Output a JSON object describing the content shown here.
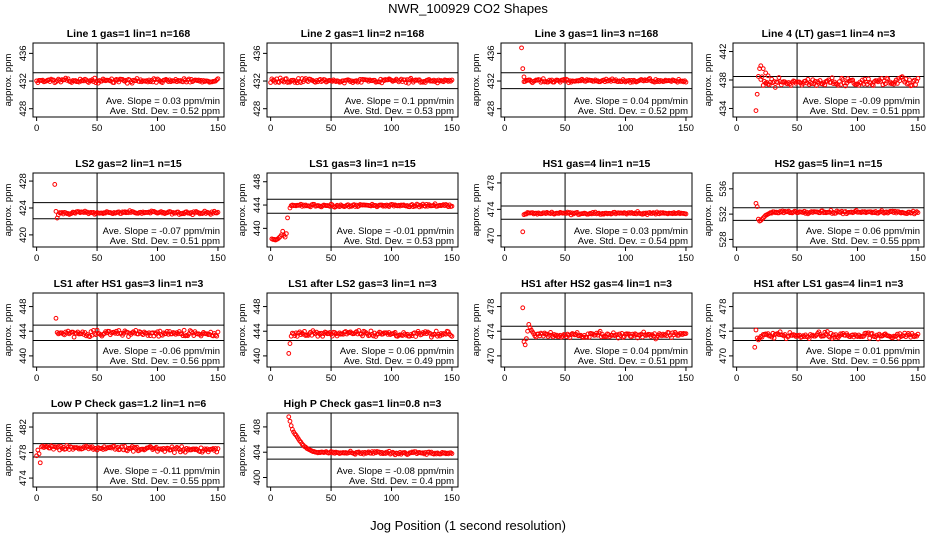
{
  "page": {
    "title": "NWR_100929  CO2 Shapes",
    "xlabel": "Jog Position (1 second resolution)"
  },
  "chart_data": [
    {
      "type": "scatter",
      "title": "Line 1 gas=1 lin=1 n=168",
      "ylabel": "approx. ppm",
      "xlim": [
        -3,
        155
      ],
      "ylim": [
        426.8,
        437.5
      ],
      "yticks": [
        428,
        432,
        436
      ],
      "xticks": [
        0,
        50,
        100,
        150
      ],
      "hlines": [
        433.2,
        430.9
      ],
      "vline": 50,
      "slope_text": "Ave. Slope =  0.03  ppm/min",
      "std_text": "Ave. Std. Dev. =  0.52  ppm",
      "base": 432.05,
      "noise": 0.18,
      "x_start": 0,
      "trend": 0,
      "early": []
    },
    {
      "type": "scatter",
      "title": "Line 2 gas=1 lin=2 n=168",
      "ylabel": "approx. ppm",
      "xlim": [
        -3,
        155
      ],
      "ylim": [
        426.8,
        437.5
      ],
      "yticks": [
        428,
        432,
        436
      ],
      "xticks": [
        0,
        50,
        100,
        150
      ],
      "hlines": [
        433.2,
        430.9
      ],
      "vline": 50,
      "slope_text": "Ave. Slope =  0.1  ppm/min",
      "std_text": "Ave. Std. Dev. =  0.53  ppm",
      "base": 432.05,
      "noise": 0.2,
      "x_start": 0,
      "trend": 0,
      "early": []
    },
    {
      "type": "scatter",
      "title": "Line 3 gas=1 lin=3 n=168",
      "ylabel": "approx. ppm",
      "xlim": [
        -3,
        155
      ],
      "ylim": [
        426.8,
        437.5
      ],
      "yticks": [
        428,
        432,
        436
      ],
      "xticks": [
        0,
        50,
        100,
        150
      ],
      "hlines": [
        433.2,
        430.9
      ],
      "vline": 50,
      "slope_text": "Ave. Slope =  0.04  ppm/min",
      "std_text": "Ave. Std. Dev. =  0.52  ppm",
      "base": 432.05,
      "noise": 0.15,
      "x_start": 16,
      "trend": 0,
      "early": [
        [
          14,
          436.8
        ],
        [
          15,
          433.8
        ],
        [
          16,
          432.6
        ]
      ]
    },
    {
      "type": "scatter",
      "title": "Line 4 (LT) gas=1 lin=4 n=3",
      "ylabel": "approx. ppm",
      "xlim": [
        -3,
        155
      ],
      "ylim": [
        432.8,
        443.2
      ],
      "yticks": [
        434,
        438,
        442
      ],
      "xticks": [
        0,
        50,
        100,
        150
      ],
      "hlines": [
        438.5,
        437.0
      ],
      "vline": 50,
      "slope_text": "Ave. Slope =  -0.09  ppm/min",
      "std_text": "Ave. Std. Dev. =  0.51  ppm",
      "base": 437.7,
      "noise": 0.35,
      "x_start": 20,
      "trend": 0,
      "early": [
        [
          16,
          433.7
        ],
        [
          17,
          436.0
        ],
        [
          18,
          438.5
        ],
        [
          19,
          439.6
        ],
        [
          20,
          440.0
        ],
        [
          22,
          439.6
        ],
        [
          24,
          439.0
        ],
        [
          26,
          438.6
        ]
      ]
    },
    {
      "type": "scatter",
      "title": "LS2 gas=2 lin=1 n=15",
      "ylabel": "approx. ppm",
      "xlim": [
        -3,
        155
      ],
      "ylim": [
        418.2,
        429.2
      ],
      "yticks": [
        420,
        424,
        428
      ],
      "xticks": [
        0,
        50,
        100,
        150
      ],
      "hlines": [
        424.8,
        422.4
      ],
      "vline": 50,
      "slope_text": "Ave. Slope =  -0.07  ppm/min",
      "std_text": "Ave. Std. Dev. =  0.51  ppm",
      "base": 423.3,
      "noise": 0.15,
      "x_start": 20,
      "trend": 0,
      "early": [
        [
          15,
          427.5
        ],
        [
          16,
          423.5
        ],
        [
          17,
          422.5
        ],
        [
          18,
          423.0
        ],
        [
          19,
          423.3
        ]
      ]
    },
    {
      "type": "scatter",
      "title": "LS1 gas=3 lin=1 n=15",
      "ylabel": "approx. ppm",
      "xlim": [
        -3,
        155
      ],
      "ylim": [
        436.8,
        449.5
      ],
      "yticks": [
        440,
        444,
        448
      ],
      "xticks": [
        0,
        50,
        100,
        150
      ],
      "hlines": [
        445.0,
        442.6
      ],
      "vline": 50,
      "slope_text": "Ave. Slope =  -0.01  ppm/min",
      "std_text": "Ave. Std. Dev. =  0.53  ppm",
      "base": 443.9,
      "noise": 0.15,
      "x_start": 20,
      "trend": 0,
      "early": [
        [
          1,
          438.2
        ],
        [
          2,
          438.1
        ],
        [
          3,
          438.1
        ],
        [
          4,
          438.0
        ],
        [
          5,
          438.1
        ],
        [
          6,
          438.2
        ],
        [
          7,
          438.4
        ],
        [
          8,
          438.6
        ],
        [
          9,
          438.9
        ],
        [
          10,
          439.5
        ],
        [
          11,
          438.8
        ],
        [
          12,
          438.5
        ],
        [
          13,
          439.1
        ],
        [
          14,
          441.8
        ],
        [
          16,
          443.5
        ],
        [
          17,
          443.9
        ],
        [
          18,
          444.0
        ],
        [
          19,
          443.9
        ]
      ]
    },
    {
      "type": "scatter",
      "title": "HS1 gas=4 lin=1 n=15",
      "ylabel": "approx. ppm",
      "xlim": [
        -3,
        155
      ],
      "ylim": [
        468.3,
        479.5
      ],
      "yticks": [
        470,
        474,
        478
      ],
      "xticks": [
        0,
        50,
        100,
        150
      ],
      "hlines": [
        474.5,
        472.5
      ],
      "vline": 50,
      "slope_text": "Ave. Slope =  0.03  ppm/min",
      "std_text": "Ave. Std. Dev. =  0.54  ppm",
      "base": 473.4,
      "noise": 0.12,
      "x_start": 18,
      "trend": 0,
      "early": [
        [
          15,
          470.6
        ],
        [
          16,
          473.2
        ],
        [
          17,
          473.3
        ]
      ]
    },
    {
      "type": "scatter",
      "title": "HS2 gas=5 lin=1 n=15",
      "ylabel": "approx. ppm",
      "xlim": [
        -3,
        155
      ],
      "ylim": [
        526.8,
        538.5
      ],
      "yticks": [
        528,
        532,
        536
      ],
      "xticks": [
        0,
        50,
        100,
        150
      ],
      "hlines": [
        533.0,
        531.0
      ],
      "vline": 50,
      "slope_text": "Ave. Slope =  0.06  ppm/min",
      "std_text": "Ave. Std. Dev. =  0.55  ppm",
      "base": 532.3,
      "noise": 0.15,
      "x_start": 28,
      "trend": 0,
      "early": [
        [
          16,
          533.7
        ],
        [
          17,
          533.2
        ],
        [
          18,
          531.2
        ],
        [
          19,
          530.9
        ],
        [
          20,
          531.0
        ],
        [
          21,
          531.2
        ],
        [
          22,
          531.4
        ],
        [
          23,
          531.6
        ],
        [
          24,
          531.8
        ],
        [
          25,
          531.9
        ],
        [
          26,
          532.0
        ],
        [
          27,
          532.1
        ]
      ]
    },
    {
      "type": "scatter",
      "title": "LS1 after HS1 gas=3 lin=1 n=3",
      "ylabel": "approx. ppm",
      "xlim": [
        -3,
        155
      ],
      "ylim": [
        438.2,
        450.2
      ],
      "yticks": [
        440,
        444,
        448
      ],
      "xticks": [
        0,
        50,
        100,
        150
      ],
      "hlines": [
        445.0,
        442.5
      ],
      "vline": 50,
      "slope_text": "Ave. Slope =  -0.06  ppm/min",
      "std_text": "Ave. Std. Dev. =  0.56  ppm",
      "base": 443.6,
      "noise": 0.3,
      "x_start": 18,
      "trend": 0,
      "early": [
        [
          16,
          446.1
        ],
        [
          17,
          443.8
        ]
      ]
    },
    {
      "type": "scatter",
      "title": "LS1 after LS2 gas=3 lin=1 n=3",
      "ylabel": "approx. ppm",
      "xlim": [
        -3,
        155
      ],
      "ylim": [
        438.2,
        450.2
      ],
      "yticks": [
        440,
        444,
        448
      ],
      "xticks": [
        0,
        50,
        100,
        150
      ],
      "hlines": [
        445.0,
        442.5
      ],
      "vline": 50,
      "slope_text": "Ave. Slope =  0.06  ppm/min",
      "std_text": "Ave. Std. Dev. =  0.49  ppm",
      "base": 443.6,
      "noise": 0.3,
      "x_start": 18,
      "trend": 0,
      "early": [
        [
          15,
          440.4
        ],
        [
          16,
          442.0
        ],
        [
          17,
          443.2
        ]
      ]
    },
    {
      "type": "scatter",
      "title": "HS1 after HS2 gas=4 lin=1 n=3",
      "ylabel": "approx. ppm",
      "xlim": [
        -3,
        155
      ],
      "ylim": [
        468.2,
        480.2
      ],
      "yticks": [
        470,
        474,
        478
      ],
      "xticks": [
        0,
        50,
        100,
        150
      ],
      "hlines": [
        474.8,
        472.7
      ],
      "vline": 50,
      "slope_text": "Ave. Slope =  0.04  ppm/min",
      "std_text": "Ave. Std. Dev. =  0.51  ppm",
      "base": 473.4,
      "noise": 0.3,
      "x_start": 24,
      "trend": 0,
      "early": [
        [
          15,
          477.8
        ],
        [
          16,
          472.3
        ],
        [
          17,
          471.8
        ],
        [
          18,
          472.8
        ],
        [
          19,
          474.0
        ],
        [
          20,
          475.1
        ],
        [
          21,
          474.6
        ],
        [
          22,
          474.2
        ],
        [
          23,
          473.9
        ]
      ]
    },
    {
      "type": "scatter",
      "title": "HS1 after LS1 gas=4 lin=1 n=3",
      "ylabel": "approx. ppm",
      "xlim": [
        -3,
        155
      ],
      "ylim": [
        468.2,
        480.2
      ],
      "yticks": [
        470,
        474,
        478
      ],
      "xticks": [
        0,
        50,
        100,
        150
      ],
      "hlines": [
        474.5,
        472.5
      ],
      "vline": 50,
      "slope_text": "Ave. Slope =  0.01  ppm/min",
      "std_text": "Ave. Std. Dev. =  0.56  ppm",
      "base": 473.3,
      "noise": 0.3,
      "x_start": 20,
      "trend": 0,
      "early": [
        [
          15,
          471.4
        ],
        [
          16,
          474.2
        ],
        [
          17,
          472.9
        ],
        [
          18,
          472.6
        ],
        [
          19,
          472.9
        ]
      ]
    },
    {
      "type": "scatter",
      "title": "Low P Check gas=1.2 lin=1 n=6",
      "ylabel": "approx. ppm",
      "xlim": [
        -3,
        155
      ],
      "ylim": [
        472.6,
        484.2
      ],
      "yticks": [
        474,
        478,
        482
      ],
      "xticks": [
        0,
        50,
        100,
        150
      ],
      "hlines": [
        479.4,
        477.3
      ],
      "vline": 50,
      "slope_text": "Ave. Slope =  -0.11  ppm/min",
      "std_text": "Ave. Std. Dev. =  0.55  ppm",
      "base": 478.6,
      "noise": 0.25,
      "x_start": 6,
      "trend": -0.003,
      "early": [
        [
          0,
          477.5
        ],
        [
          1,
          478.4
        ],
        [
          2,
          477.8
        ],
        [
          3,
          476.4
        ],
        [
          4,
          478.9
        ],
        [
          5,
          479.0
        ]
      ]
    },
    {
      "type": "scatter",
      "title": "High P Check gas=1 lin=0.8 n=3",
      "ylabel": "approx. ppm",
      "xlim": [
        -3,
        155
      ],
      "ylim": [
        398.5,
        410.2
      ],
      "yticks": [
        400,
        404,
        408
      ],
      "xticks": [
        0,
        50,
        100,
        150
      ],
      "hlines": [
        404.8,
        402.9
      ],
      "vline": 50,
      "slope_text": "Ave. Slope =  -0.08  ppm/min",
      "std_text": "Ave. Std. Dev. =  0.4  ppm",
      "base": 403.9,
      "noise": 0.15,
      "x_start": 40,
      "trend": -0.001,
      "early": [
        [
          15,
          409.6
        ],
        [
          16,
          408.9
        ],
        [
          17,
          408.2
        ],
        [
          18,
          407.6
        ],
        [
          19,
          407.2
        ],
        [
          20,
          406.9
        ],
        [
          21,
          406.7
        ],
        [
          22,
          406.4
        ],
        [
          23,
          406.1
        ],
        [
          24,
          405.8
        ],
        [
          25,
          405.6
        ],
        [
          26,
          405.3
        ],
        [
          27,
          405.1
        ],
        [
          28,
          404.9
        ],
        [
          29,
          404.8
        ],
        [
          30,
          404.6
        ],
        [
          31,
          404.5
        ],
        [
          32,
          404.4
        ],
        [
          33,
          404.3
        ],
        [
          34,
          404.2
        ],
        [
          35,
          404.1
        ],
        [
          36,
          404.1
        ],
        [
          37,
          404.0
        ],
        [
          38,
          404.0
        ],
        [
          39,
          403.9
        ]
      ]
    }
  ]
}
